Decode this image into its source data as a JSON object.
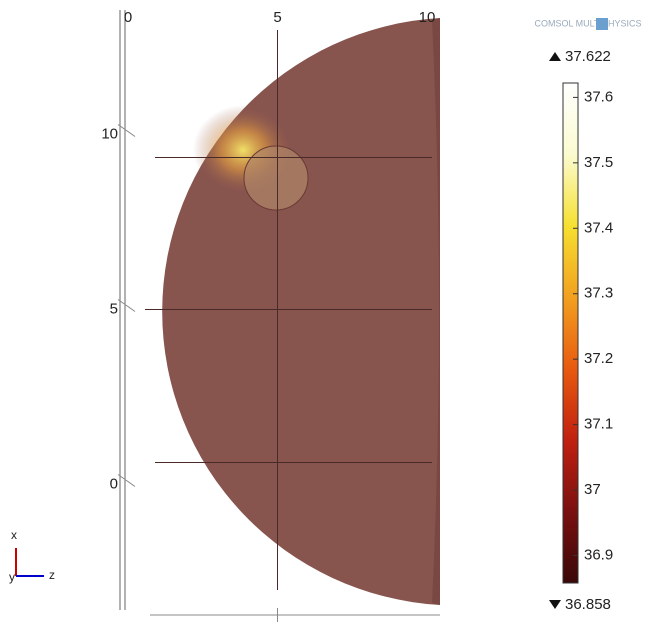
{
  "chart_data": {
    "type": "surface",
    "logo": "COMSOL MULTIPHYSICS",
    "xlim": [
      0,
      10
    ],
    "xticks": [
      0,
      5,
      10
    ],
    "ylim": [
      -3.5,
      13.5
    ],
    "yticks": [
      0,
      5,
      10
    ],
    "axis_labels": {
      "x": "x",
      "y": "y",
      "z": "z"
    },
    "colorbar": {
      "clim": [
        36.858,
        37.622
      ],
      "max": 37.622,
      "min": 36.858,
      "ticks": [
        36.9,
        37,
        37.1,
        37.2,
        37.3,
        37.4,
        37.5,
        37.6
      ],
      "colormap": [
        "#3a0808",
        "#7a1010",
        "#c02010",
        "#e85a10",
        "#f2a020",
        "#f6e030",
        "#fbfbd0",
        "#ffffff"
      ]
    }
  }
}
